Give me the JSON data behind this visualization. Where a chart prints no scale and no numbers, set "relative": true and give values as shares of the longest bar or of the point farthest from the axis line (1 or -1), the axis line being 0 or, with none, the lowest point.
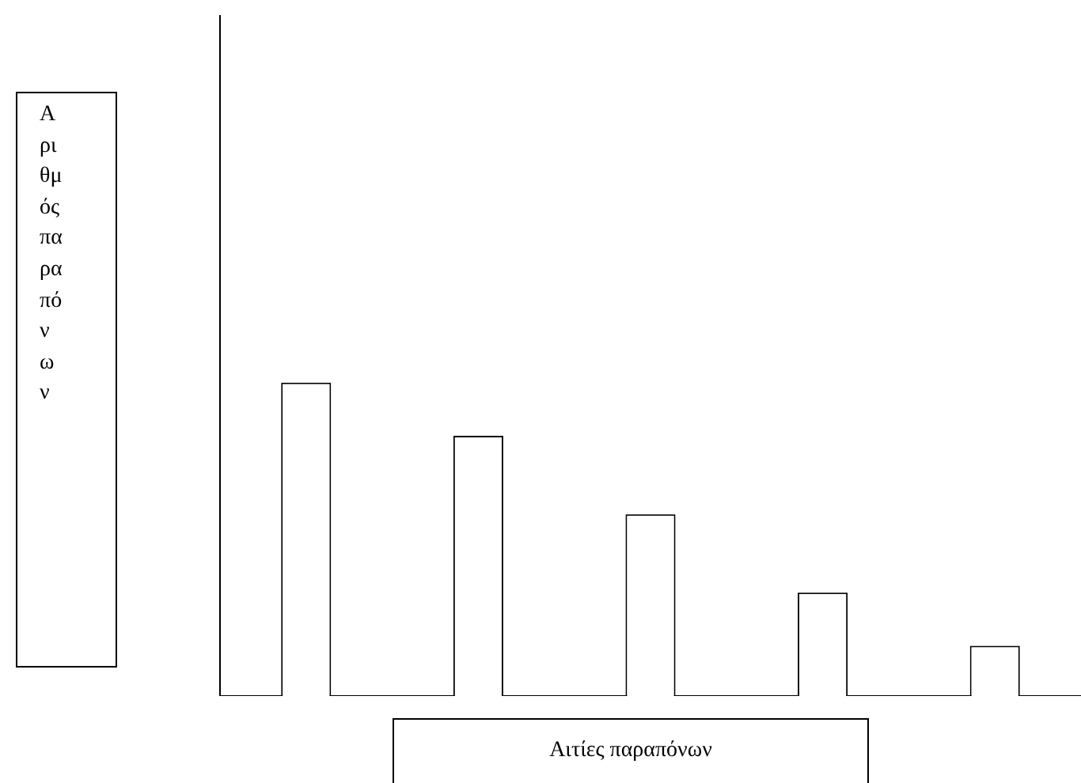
{
  "chart_data": {
    "type": "bar",
    "relative": true,
    "ylabel": "Αριθμός παραπόνων",
    "xlabel": "Αιτίες παραπόνων",
    "categories": [
      null,
      null,
      null,
      null,
      null
    ],
    "values": [
      1,
      0.83,
      0.58,
      0.33,
      0.16
    ],
    "color": "#ffffff",
    "grid": false,
    "legend": false
  }
}
